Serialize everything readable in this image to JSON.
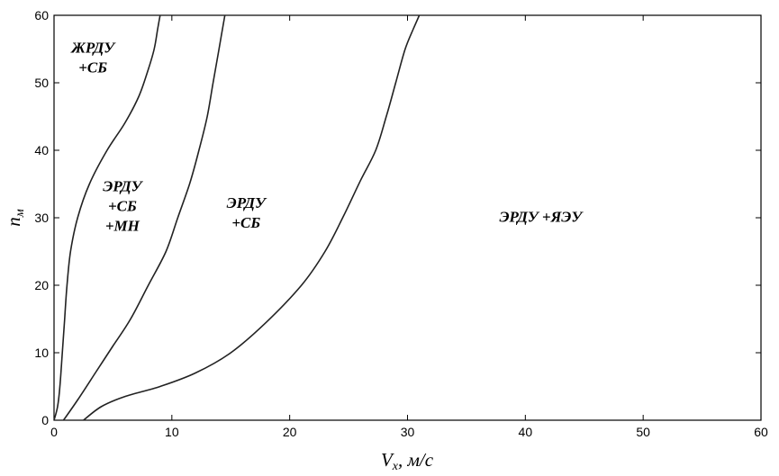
{
  "chart_data": {
    "type": "line",
    "title": "",
    "xlabel": {
      "main": "V",
      "sub": "x",
      "unit": ", м/с"
    },
    "ylabel": {
      "main": "n",
      "sub": "м"
    },
    "xlim": [
      0,
      60
    ],
    "ylim": [
      0,
      60
    ],
    "xticks": [
      "0",
      "10",
      "20",
      "30",
      "40",
      "50",
      "60"
    ],
    "yticks": [
      "0",
      "10",
      "20",
      "30",
      "40",
      "50",
      "60"
    ],
    "grid": false,
    "series": [
      {
        "points": [
          [
            0,
            0
          ],
          [
            0.3,
            2
          ],
          [
            0.5,
            5
          ],
          [
            0.7,
            10
          ],
          [
            0.9,
            15
          ],
          [
            1.1,
            20
          ],
          [
            1.4,
            25
          ],
          [
            2,
            30
          ],
          [
            3,
            35
          ],
          [
            4.5,
            40
          ],
          [
            6,
            44
          ],
          [
            7.2,
            48
          ],
          [
            8,
            52
          ],
          [
            8.5,
            55
          ],
          [
            8.8,
            58
          ],
          [
            9,
            60
          ]
        ]
      },
      {
        "points": [
          [
            0.8,
            0
          ],
          [
            2,
            3
          ],
          [
            3.5,
            7
          ],
          [
            5,
            11
          ],
          [
            6.5,
            15
          ],
          [
            8,
            20
          ],
          [
            9.5,
            25
          ],
          [
            10.5,
            30
          ],
          [
            11.5,
            35
          ],
          [
            12.3,
            40
          ],
          [
            13,
            45
          ],
          [
            13.5,
            50
          ],
          [
            14,
            55
          ],
          [
            14.5,
            60
          ]
        ]
      },
      {
        "points": [
          [
            2.5,
            0
          ],
          [
            4,
            2
          ],
          [
            6,
            3.5
          ],
          [
            9,
            5
          ],
          [
            12,
            7
          ],
          [
            15,
            10
          ],
          [
            18,
            14.5
          ],
          [
            21,
            20
          ],
          [
            23,
            25
          ],
          [
            24.5,
            30
          ],
          [
            26,
            35.5
          ],
          [
            27.3,
            40
          ],
          [
            28.2,
            45
          ],
          [
            29,
            50
          ],
          [
            29.8,
            55
          ],
          [
            30.5,
            58
          ],
          [
            31,
            60
          ]
        ]
      }
    ],
    "annotations": [
      {
        "lines": [
          "ЖРДУ",
          "+СБ"
        ],
        "x": 3.3,
        "y": 53.8
      },
      {
        "lines": [
          "ЭРДУ",
          "+СБ",
          "+МН"
        ],
        "x": 5.8,
        "y": 31.8
      },
      {
        "lines": [
          "ЭРДУ",
          "+СБ"
        ],
        "x": 16.3,
        "y": 30.8
      },
      {
        "lines": [
          "ЭРДУ +ЯЭУ"
        ],
        "x": 41.3,
        "y": 30.2
      }
    ]
  }
}
